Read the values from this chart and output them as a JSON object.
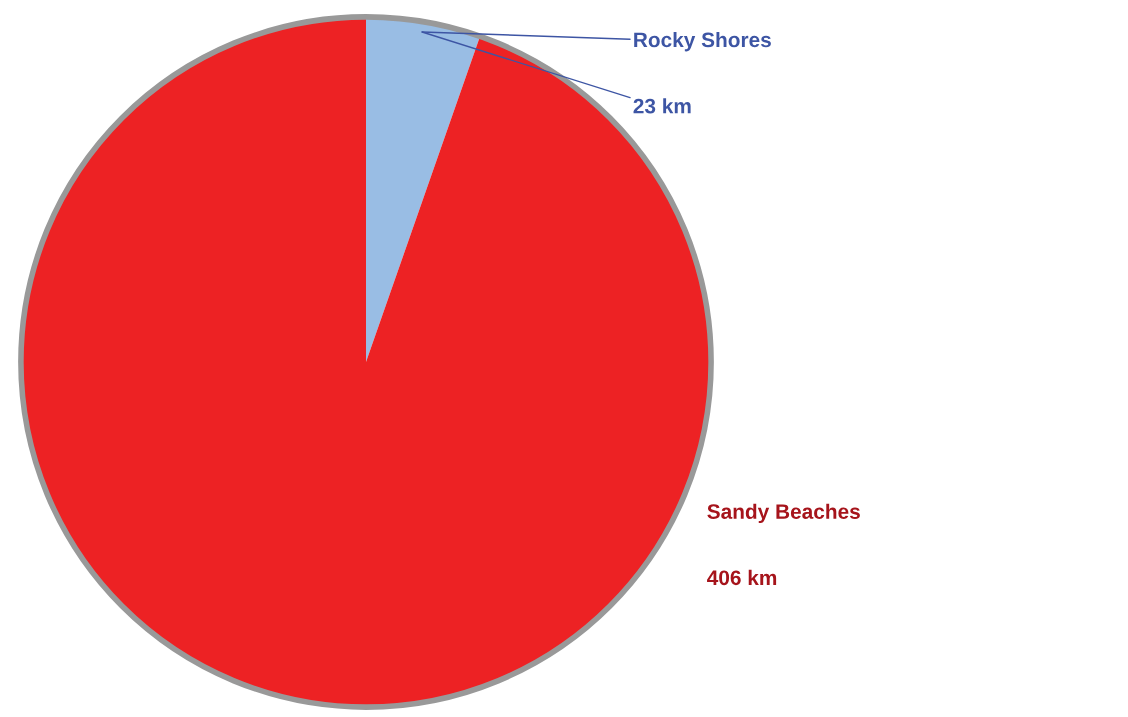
{
  "chart_data": {
    "type": "pie",
    "categories": [
      "Rocky Shores",
      "Sandy Beaches"
    ],
    "values": [
      23,
      406
    ],
    "colors": [
      "#99bde4",
      "#ed2224"
    ],
    "value_labels": [
      "23 km",
      "406 km"
    ],
    "legend": false
  }
}
